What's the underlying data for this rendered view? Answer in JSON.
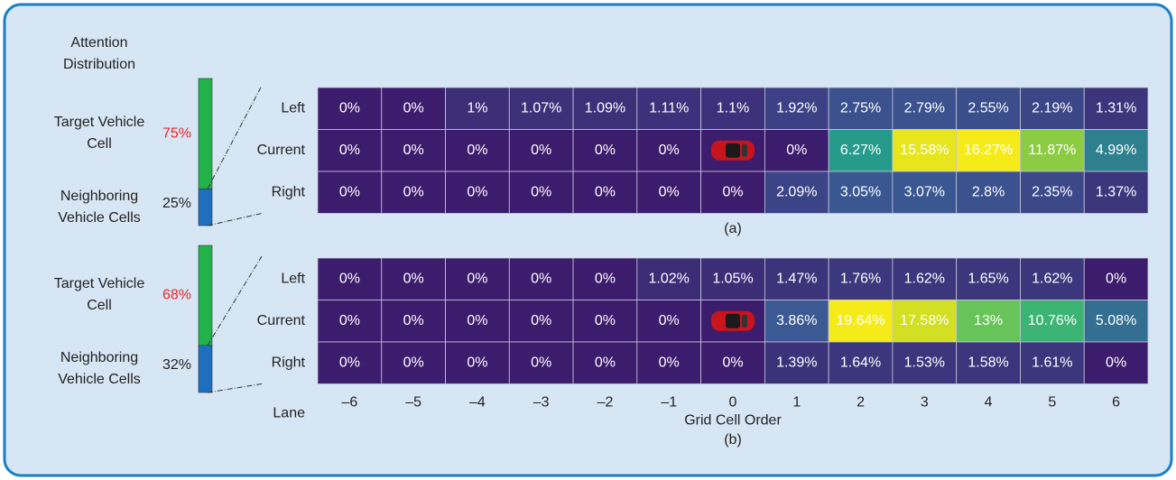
{
  "title": "Attention Distribution",
  "chart_data": [
    {
      "type": "heatmap",
      "caption": "(a)",
      "rows": [
        "Left",
        "Current",
        "Right"
      ],
      "values": [
        [
          0,
          0,
          1,
          1.07,
          1.09,
          1.11,
          1.1,
          1.92,
          2.75,
          2.79,
          2.55,
          2.19,
          1.31
        ],
        [
          0,
          0,
          0,
          0,
          0,
          0,
          null,
          0,
          6.27,
          15.58,
          16.27,
          11.87,
          4.99
        ],
        [
          0,
          0,
          0,
          0,
          0,
          0,
          0,
          2.09,
          3.05,
          3.07,
          2.8,
          2.35,
          1.37
        ]
      ],
      "value_labels": [
        [
          "0%",
          "0%",
          "1%",
          "1.07%",
          "1.09%",
          "1.11%",
          "1.1%",
          "1.92%",
          "2.75%",
          "2.79%",
          "2.55%",
          "2.19%",
          "1.31%"
        ],
        [
          "0%",
          "0%",
          "0%",
          "0%",
          "0%",
          "0%",
          null,
          "0%",
          "6.27%",
          "15.58%",
          "16.27%",
          "11.87%",
          "4.99%"
        ],
        [
          "0%",
          "0%",
          "0%",
          "0%",
          "0%",
          "0%",
          "0%",
          "2.09%",
          "3.05%",
          "3.07%",
          "2.8%",
          "2.35%",
          "1.37%"
        ]
      ],
      "colormap": [
        "#3c1c6c",
        "#3b5b94",
        "#24a08a",
        "#45bc6c",
        "#b3d52b",
        "#f5eb19"
      ],
      "distribution": {
        "labels": [
          "Target Vehicle Cell",
          "Neighboring Vehicle Cells"
        ],
        "values": [
          75,
          25
        ],
        "value_labels": [
          "75%",
          "25%"
        ],
        "colors": [
          "#22b24c",
          "#1f6fc0"
        ],
        "label_colors": [
          "#e8262a",
          "#222222"
        ]
      }
    },
    {
      "type": "heatmap",
      "caption": "(b)",
      "rows": [
        "Left",
        "Current",
        "Right"
      ],
      "row_axis_label": "Lane",
      "categories": [
        "–6",
        "–5",
        "–4",
        "–3",
        "–2",
        "–1",
        "0",
        "1",
        "2",
        "3",
        "4",
        "5",
        "6"
      ],
      "xlabel": "Grid Cell Order",
      "values": [
        [
          0,
          0,
          0,
          0,
          0,
          1.02,
          1.05,
          1.47,
          1.76,
          1.62,
          1.65,
          1.62,
          0
        ],
        [
          0,
          0,
          0,
          0,
          0,
          0,
          null,
          3.86,
          19.64,
          17.58,
          13,
          10.76,
          5.08
        ],
        [
          0,
          0,
          0,
          0,
          0,
          0,
          0,
          1.39,
          1.64,
          1.53,
          1.58,
          1.61,
          0
        ]
      ],
      "value_labels": [
        [
          "0%",
          "0%",
          "0%",
          "0%",
          "0%",
          "1.02%",
          "1.05%",
          "1.47%",
          "1.76%",
          "1.62%",
          "1.65%",
          "1.62%",
          "0%"
        ],
        [
          "0%",
          "0%",
          "0%",
          "0%",
          "0%",
          "0%",
          null,
          "3.86%",
          "19.64%",
          "17.58%",
          "13%",
          "10.76%",
          "5.08%"
        ],
        [
          "0%",
          "0%",
          "0%",
          "0%",
          "0%",
          "0%",
          "0%",
          "1.39%",
          "1.64%",
          "1.53%",
          "1.58%",
          "1.61%",
          "0%"
        ]
      ],
      "colormap": [
        "#3c1c6c",
        "#3b5b94",
        "#24a08a",
        "#45bc6c",
        "#b3d52b",
        "#f5eb19"
      ],
      "distribution": {
        "labels": [
          "Target Vehicle Cell",
          "Neighboring Vehicle Cells"
        ],
        "values": [
          68,
          32
        ],
        "value_labels": [
          "68%",
          "32%"
        ],
        "colors": [
          "#22b24c",
          "#1f6fc0"
        ],
        "label_colors": [
          "#e8262a",
          "#222222"
        ]
      }
    }
  ]
}
